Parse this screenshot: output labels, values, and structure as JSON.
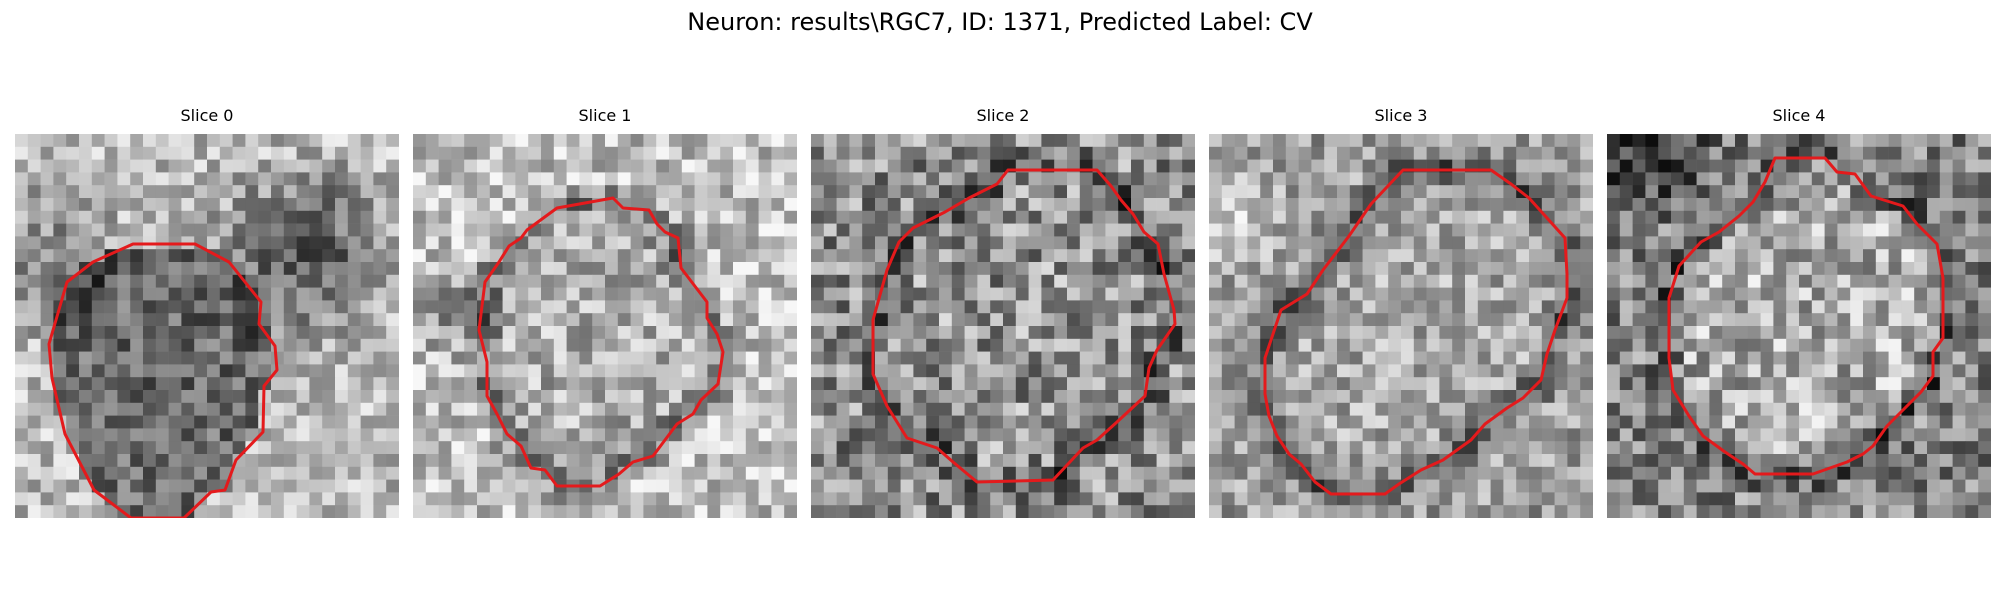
{
  "figure": {
    "title": "Neuron: results\\RGC7, ID: 1371, Predicted Label: CV"
  },
  "slices": [
    {
      "title": "Slice 0"
    },
    {
      "title": "Slice 1"
    },
    {
      "title": "Slice 2"
    },
    {
      "title": "Slice 3"
    },
    {
      "title": "Slice 4"
    }
  ],
  "colors": {
    "contour": "#e41a1c",
    "background": "#ffffff"
  }
}
